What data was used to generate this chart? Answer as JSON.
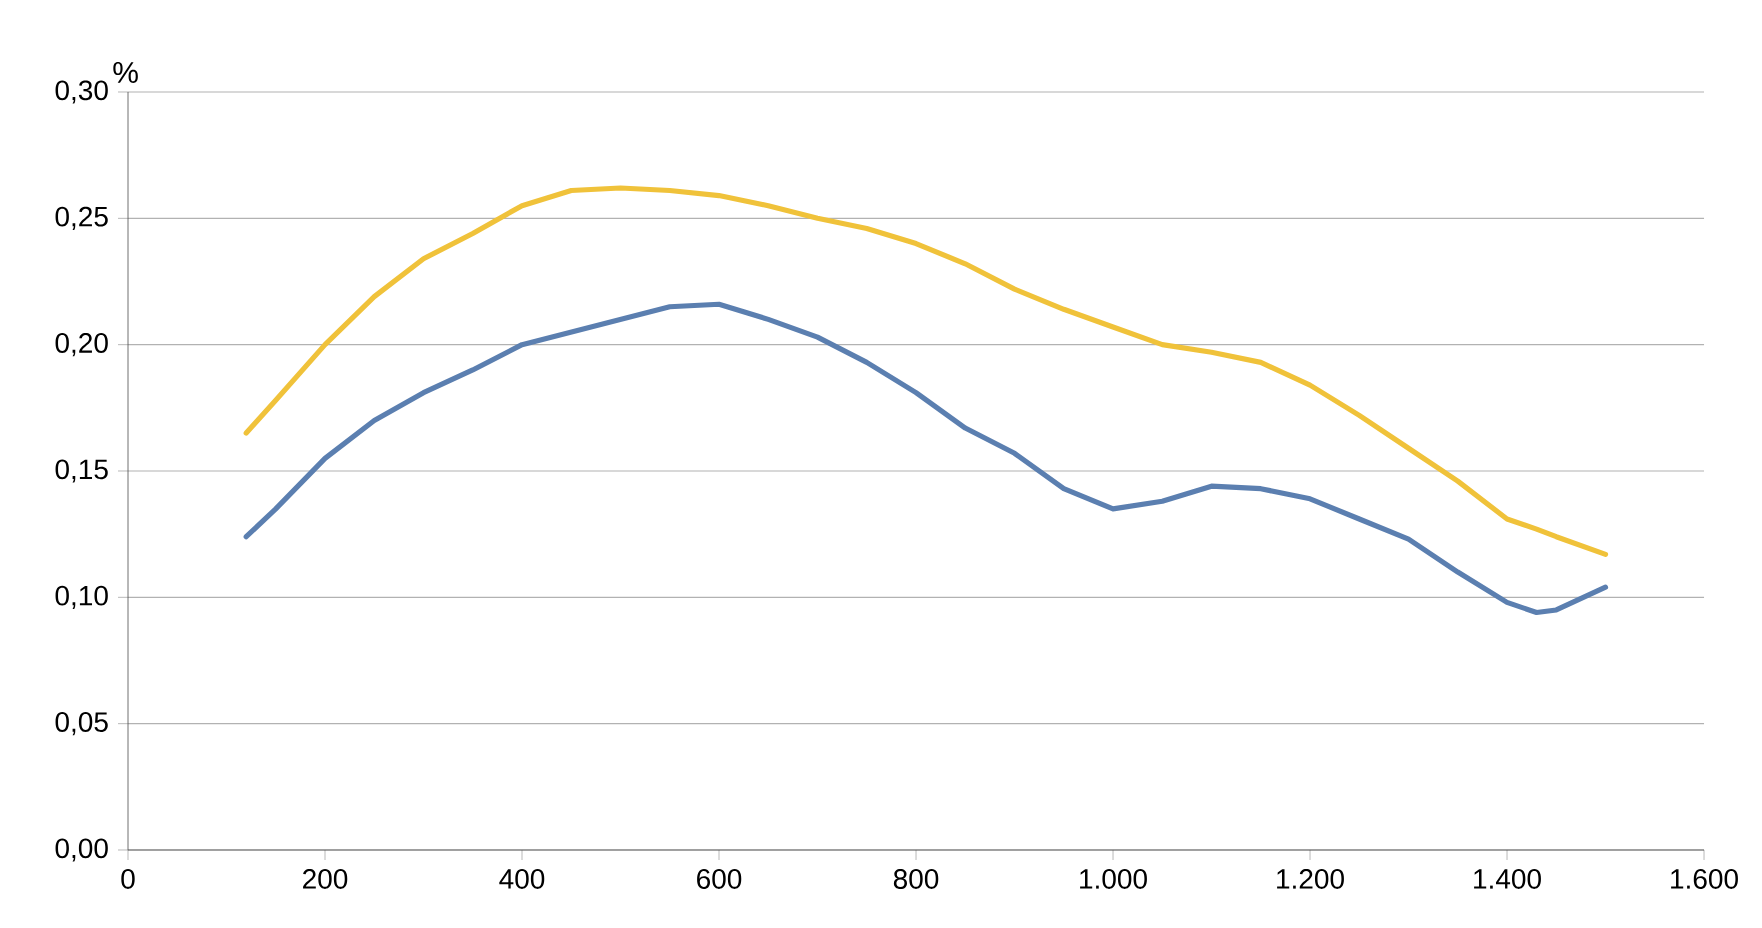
{
  "chart_data": {
    "type": "line",
    "ylabel": "%",
    "x": [
      120,
      150,
      200,
      250,
      300,
      350,
      400,
      450,
      500,
      550,
      600,
      650,
      700,
      750,
      800,
      850,
      900,
      950,
      1000,
      1050,
      1100,
      1150,
      1200,
      1250,
      1300,
      1350,
      1400,
      1430,
      1450,
      1500
    ],
    "series": [
      {
        "color": "#f0c23a",
        "values": [
          0.165,
          0.178,
          0.2,
          0.219,
          0.234,
          0.244,
          0.255,
          0.261,
          0.262,
          0.261,
          0.259,
          0.255,
          0.25,
          0.246,
          0.24,
          0.232,
          0.222,
          0.214,
          0.207,
          0.2,
          0.197,
          0.193,
          0.184,
          0.172,
          0.159,
          0.146,
          0.131,
          0.127,
          0.124,
          0.117
        ]
      },
      {
        "color": "#5b7fb0",
        "values": [
          0.124,
          0.135,
          0.155,
          0.17,
          0.181,
          0.19,
          0.2,
          0.205,
          0.21,
          0.215,
          0.216,
          0.21,
          0.203,
          0.193,
          0.181,
          0.167,
          0.157,
          0.143,
          0.135,
          0.138,
          0.144,
          0.143,
          0.139,
          0.131,
          0.123,
          0.11,
          0.098,
          0.094,
          0.095,
          0.104
        ]
      }
    ],
    "xlim": [
      0,
      1600
    ],
    "xticks": [
      0,
      200,
      400,
      600,
      800,
      {
        "value": 1000,
        "label": "1.000"
      },
      {
        "value": 1200,
        "label": "1.200"
      },
      {
        "value": 1400,
        "label": "1.400"
      },
      {
        "value": 1600,
        "label": "1.600"
      }
    ],
    "ylim": [
      0,
      0.3
    ],
    "yticks": [
      {
        "value": 0,
        "label": "0,00"
      },
      {
        "value": 0.05,
        "label": "0,05"
      },
      {
        "value": 0.1,
        "label": "0,10"
      },
      {
        "value": 0.15,
        "label": "0,15"
      },
      {
        "value": 0.2,
        "label": "0,20"
      },
      {
        "value": 0.25,
        "label": "0,25"
      },
      {
        "value": 0.3,
        "label": "0,30"
      }
    ],
    "grid": "y",
    "marker": "none",
    "line_style": "solid",
    "legend": false
  }
}
